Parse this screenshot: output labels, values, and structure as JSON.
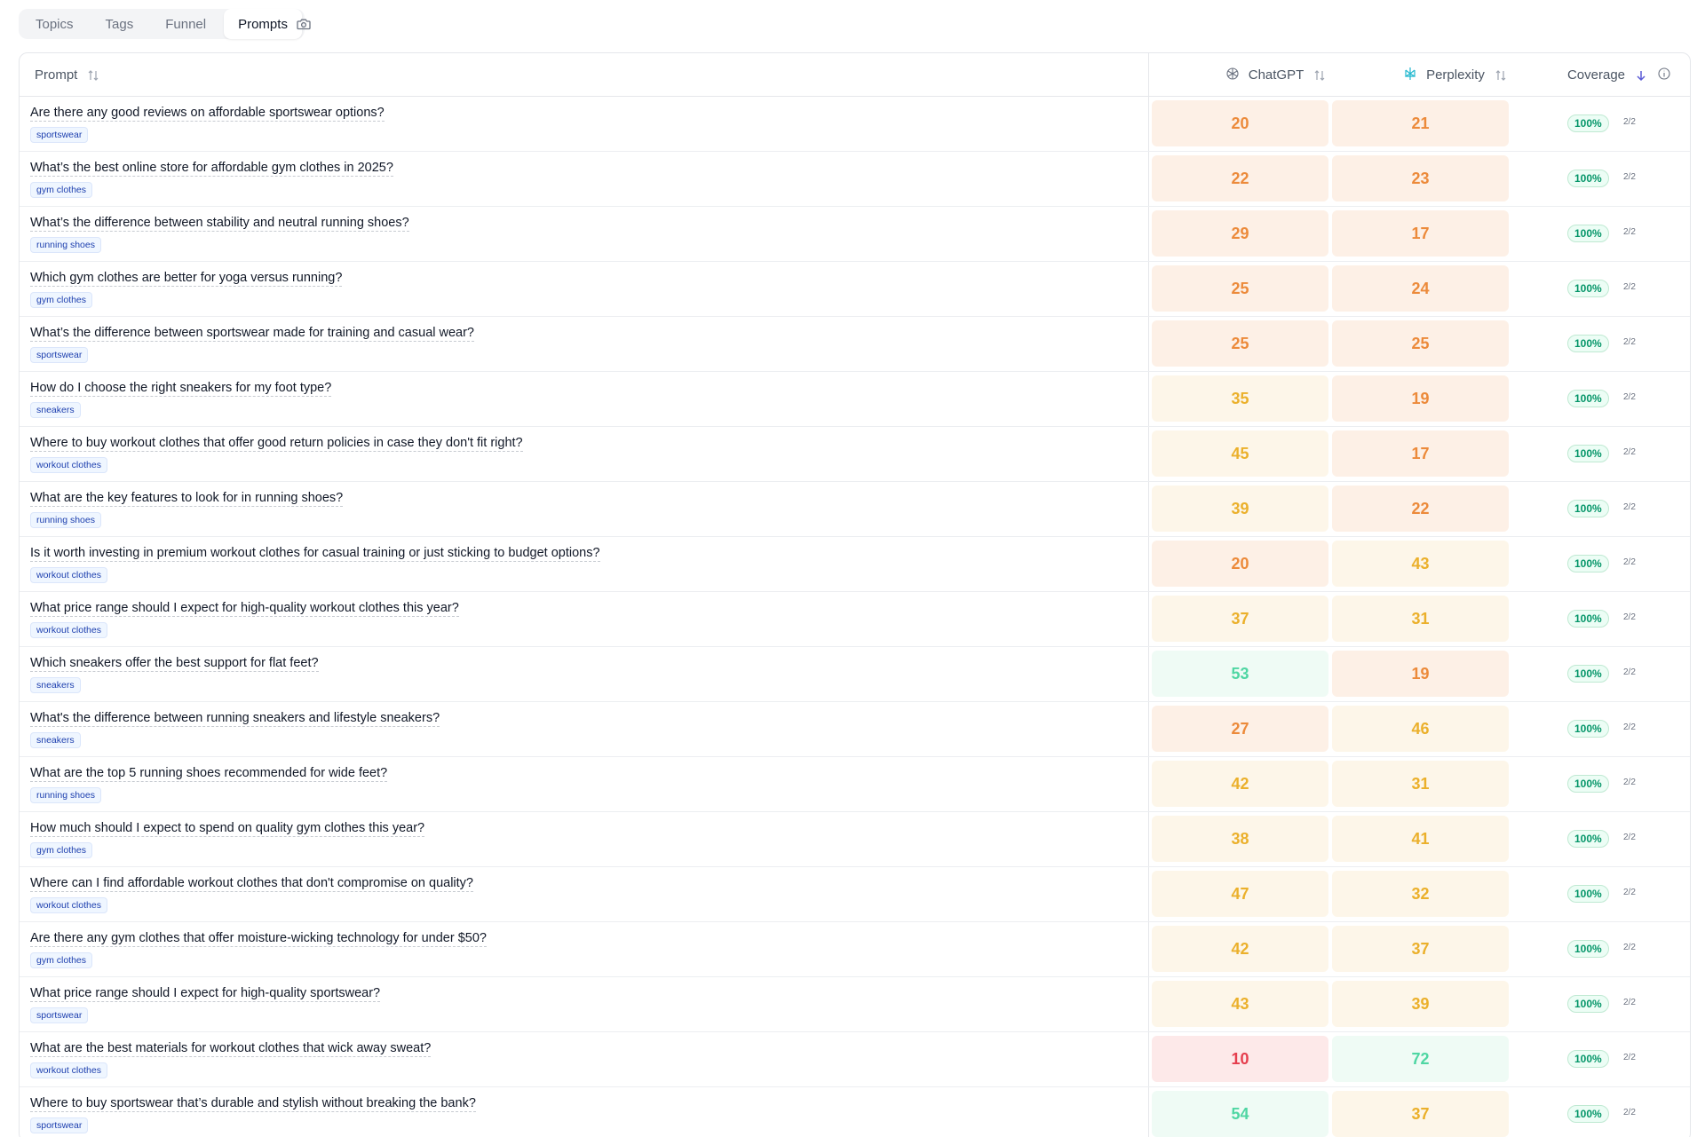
{
  "tabs": [
    {
      "label": "Topics",
      "active": false
    },
    {
      "label": "Tags",
      "active": false
    },
    {
      "label": "Funnel",
      "active": false
    },
    {
      "label": "Prompts",
      "active": true
    }
  ],
  "camera_icon": "camera-icon",
  "columns": {
    "prompt": "Prompt",
    "chatgpt": "ChatGPT",
    "perplexity": "Perplexity",
    "coverage": "Coverage"
  },
  "colors": {
    "red": "#e53e4d",
    "orange": "#ec8a3a",
    "amber": "#ebb02b",
    "green": "#4fd6a3",
    "coverage_green": "#059669"
  },
  "rows": [
    {
      "prompt": "Are there any good reviews on affordable sportswear options?",
      "tag": "sportswear",
      "chatgpt": "20",
      "perplexity": "21",
      "coverage": "100%",
      "fraction": "2/2"
    },
    {
      "prompt": "What’s the best online store for affordable gym clothes in 2025?",
      "tag": "gym clothes",
      "chatgpt": "22",
      "perplexity": "23",
      "coverage": "100%",
      "fraction": "2/2"
    },
    {
      "prompt": "What’s the difference between stability and neutral running shoes?",
      "tag": "running shoes",
      "chatgpt": "29",
      "perplexity": "17",
      "coverage": "100%",
      "fraction": "2/2"
    },
    {
      "prompt": "Which gym clothes are better for yoga versus running?",
      "tag": "gym clothes",
      "chatgpt": "25",
      "perplexity": "24",
      "coverage": "100%",
      "fraction": "2/2"
    },
    {
      "prompt": "What’s the difference between sportswear made for training and casual wear?",
      "tag": "sportswear",
      "chatgpt": "25",
      "perplexity": "25",
      "coverage": "100%",
      "fraction": "2/2"
    },
    {
      "prompt": "How do I choose the right sneakers for my foot type?",
      "tag": "sneakers",
      "chatgpt": "35",
      "perplexity": "19",
      "coverage": "100%",
      "fraction": "2/2"
    },
    {
      "prompt": "Where to buy workout clothes that offer good return policies in case they don't fit right?",
      "tag": "workout clothes",
      "chatgpt": "45",
      "perplexity": "17",
      "coverage": "100%",
      "fraction": "2/2"
    },
    {
      "prompt": "What are the key features to look for in running shoes?",
      "tag": "running shoes",
      "chatgpt": "39",
      "perplexity": "22",
      "coverage": "100%",
      "fraction": "2/2"
    },
    {
      "prompt": "Is it worth investing in premium workout clothes for casual training or just sticking to budget options?",
      "tag": "workout clothes",
      "chatgpt": "20",
      "perplexity": "43",
      "coverage": "100%",
      "fraction": "2/2"
    },
    {
      "prompt": "What price range should I expect for high-quality workout clothes this year?",
      "tag": "workout clothes",
      "chatgpt": "37",
      "perplexity": "31",
      "coverage": "100%",
      "fraction": "2/2"
    },
    {
      "prompt": "Which sneakers offer the best support for flat feet?",
      "tag": "sneakers",
      "chatgpt": "53",
      "perplexity": "19",
      "coverage": "100%",
      "fraction": "2/2"
    },
    {
      "prompt": "What's the difference between running sneakers and lifestyle sneakers?",
      "tag": "sneakers",
      "chatgpt": "27",
      "perplexity": "46",
      "coverage": "100%",
      "fraction": "2/2"
    },
    {
      "prompt": "What are the top 5 running shoes recommended for wide feet?",
      "tag": "running shoes",
      "chatgpt": "42",
      "perplexity": "31",
      "coverage": "100%",
      "fraction": "2/2"
    },
    {
      "prompt": "How much should I expect to spend on quality gym clothes this year?",
      "tag": "gym clothes",
      "chatgpt": "38",
      "perplexity": "41",
      "coverage": "100%",
      "fraction": "2/2"
    },
    {
      "prompt": "Where can I find affordable workout clothes that don't compromise on quality?",
      "tag": "workout clothes",
      "chatgpt": "47",
      "perplexity": "32",
      "coverage": "100%",
      "fraction": "2/2"
    },
    {
      "prompt": "Are there any gym clothes that offer moisture-wicking technology for under $50?",
      "tag": "gym clothes",
      "chatgpt": "42",
      "perplexity": "37",
      "coverage": "100%",
      "fraction": "2/2"
    },
    {
      "prompt": "What price range should I expect for high-quality sportswear?",
      "tag": "sportswear",
      "chatgpt": "43",
      "perplexity": "39",
      "coverage": "100%",
      "fraction": "2/2"
    },
    {
      "prompt": "What are the best materials for workout clothes that wick away sweat?",
      "tag": "workout clothes",
      "chatgpt": "10",
      "perplexity": "72",
      "coverage": "100%",
      "fraction": "2/2"
    },
    {
      "prompt": "Where to buy sportswear that’s durable and stylish without breaking the bank?",
      "tag": "sportswear",
      "chatgpt": "54",
      "perplexity": "37",
      "coverage": "100%",
      "fraction": "2/2"
    }
  ]
}
